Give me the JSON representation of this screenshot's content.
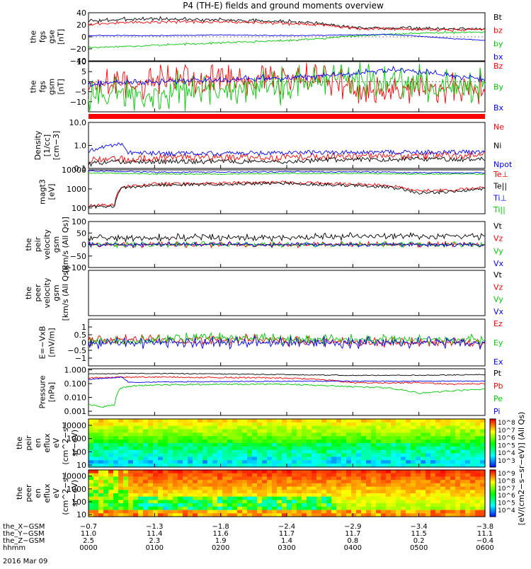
{
  "title": "P4 (TH-E) fields and ground moments overview",
  "date_label": "2016 Mar 09",
  "colors": {
    "black": "#000000",
    "red": "#ff0000",
    "green": "#00cc00",
    "blue": "#0000ff"
  },
  "chart_data": [
    {
      "id": "fgs-gse",
      "type": "line",
      "ylabel_lines": [
        "the",
        "fgs",
        "gse",
        "[nT]"
      ],
      "ylim": [
        -40,
        40
      ],
      "ticks": [
        "40",
        "20",
        "0",
        "−20",
        "−40"
      ],
      "tick_values": [
        40,
        20,
        0,
        -20,
        -40
      ],
      "series": [
        {
          "name": "Bt",
          "color": "#000000",
          "x": [
            0,
            0.5,
            1,
            1.5,
            2,
            2.5,
            3,
            3.5,
            3.9,
            4.2,
            4.5,
            5,
            5.5,
            6
          ],
          "values": [
            26,
            29,
            30,
            29,
            28,
            27,
            25,
            22,
            17,
            14,
            15,
            14,
            13,
            14
          ],
          "noise": 4
        },
        {
          "name": "bz",
          "color": "#ff0000",
          "x": [
            0,
            0.5,
            1,
            1.5,
            2,
            2.5,
            3,
            3.5,
            3.9,
            4.2,
            4.5,
            5,
            5.5,
            6
          ],
          "values": [
            21,
            24,
            25,
            25,
            25,
            24,
            22,
            20,
            16,
            13,
            13,
            12,
            11,
            13
          ],
          "noise": 3
        },
        {
          "name": "by",
          "color": "#00cc00",
          "x": [
            0,
            0.5,
            1,
            1.5,
            2,
            2.5,
            3,
            3.5,
            4,
            4.5,
            5,
            5.5,
            6
          ],
          "values": [
            -18,
            -16,
            -14,
            -12,
            -10,
            -8,
            -6,
            -3,
            1,
            4,
            6,
            7,
            8
          ],
          "noise": 2
        },
        {
          "name": "bx",
          "color": "#0000ff",
          "x": [
            0,
            1,
            2,
            3,
            4,
            4.5,
            5,
            5.5,
            6
          ],
          "values": [
            2,
            2,
            3,
            2,
            3,
            4,
            1,
            -3,
            -6
          ],
          "noise": 1
        }
      ]
    },
    {
      "id": "fgs-gsm",
      "type": "line",
      "ylabel_lines": [
        "the",
        "fgs",
        "gsm",
        "[nT]"
      ],
      "ylim": [
        -15,
        10
      ],
      "ticks": [
        "10",
        "5",
        "0",
        "−5",
        "−10"
      ],
      "tick_values": [
        10,
        5,
        0,
        -5,
        -10
      ],
      "series": [
        {
          "name": "Bz",
          "color": "#ff0000",
          "x": [
            0,
            1,
            2,
            3,
            3.5,
            4,
            4.5,
            5,
            5.5,
            6
          ],
          "values": [
            -2,
            0,
            1,
            2,
            1,
            -4,
            -5,
            -4,
            -3,
            -4
          ],
          "noise": 9
        },
        {
          "name": "By",
          "color": "#00cc00",
          "x": [
            0,
            1,
            2,
            3,
            3.5,
            4,
            4.5,
            5,
            5.5,
            6
          ],
          "values": [
            -6,
            -5,
            -4,
            -2,
            0,
            2,
            0,
            -2,
            -3,
            -2
          ],
          "noise": 11
        },
        {
          "name": "Bx",
          "color": "#0000ff",
          "x": [
            0,
            1,
            2,
            3,
            3.5,
            4,
            4.5,
            5,
            5.5,
            6
          ],
          "values": [
            -1,
            0,
            1,
            2,
            3,
            4,
            6,
            5,
            3,
            1
          ],
          "noise": 2
        }
      ]
    },
    {
      "id": "density",
      "type": "line",
      "log": true,
      "ylabel_lines": [
        "Density",
        "[1/cc]",
        "[cm−3]"
      ],
      "ylim": [
        0.1,
        10
      ],
      "ticks": [
        "10.0",
        "1.0",
        "0.1"
      ],
      "tick_values": [
        10,
        1,
        0.1
      ],
      "series": [
        {
          "name": "Ne",
          "color": "#ff0000",
          "x": [
            0,
            0.3,
            0.6,
            1,
            2,
            3,
            4,
            5,
            6
          ],
          "values": [
            0.2,
            0.3,
            0.25,
            0.3,
            0.3,
            0.3,
            0.35,
            0.35,
            0.4
          ],
          "noise": 0.15
        },
        {
          "name": "Ni",
          "color": "#000000",
          "x": [
            0,
            0.3,
            0.6,
            1,
            2,
            3,
            4,
            5,
            6
          ],
          "values": [
            0.15,
            0.2,
            0.2,
            0.2,
            0.2,
            0.2,
            0.25,
            0.25,
            0.25
          ],
          "noise": 0.1
        },
        {
          "name": "Npot",
          "color": "#0000ff",
          "x": [
            0,
            0.3,
            0.5,
            0.6,
            1,
            2,
            3,
            4,
            5,
            6
          ],
          "values": [
            0.5,
            1.0,
            1.2,
            0.5,
            0.45,
            0.45,
            0.5,
            0.5,
            0.5,
            0.5
          ],
          "noise": 0.1
        }
      ]
    },
    {
      "id": "temperature",
      "type": "line",
      "log": true,
      "ylabel_lines": [
        "magt3",
        "[eV]"
      ],
      "ylim": [
        50,
        10000
      ],
      "ticks": [
        "10000",
        "1000",
        "100"
      ],
      "tick_values": [
        10000,
        1000,
        100
      ],
      "series": [
        {
          "name": "Te⊥",
          "color": "#ff0000",
          "x": [
            0,
            0.2,
            0.4,
            0.5,
            0.7,
            1,
            2,
            3,
            4,
            4.5,
            5,
            5.5,
            6
          ],
          "values": [
            130,
            140,
            150,
            1300,
            1500,
            1800,
            2000,
            2200,
            1800,
            1600,
            800,
            900,
            1200
          ],
          "noise": 0.08
        },
        {
          "name": "Te||",
          "color": "#000000",
          "x": [
            0,
            0.2,
            0.4,
            0.5,
            0.7,
            1,
            2,
            3,
            4,
            4.5,
            5,
            5.5,
            6
          ],
          "values": [
            110,
            120,
            130,
            1100,
            1300,
            1600,
            1800,
            2000,
            1500,
            1300,
            600,
            700,
            1000
          ],
          "noise": 0.08
        },
        {
          "name": "Ti⊥",
          "color": "#0000ff",
          "x": [
            0,
            1,
            2,
            3,
            4,
            5,
            6
          ],
          "values": [
            9000,
            7500,
            7500,
            8000,
            8000,
            7000,
            7000
          ],
          "noise": 0.03
        },
        {
          "name": "Ti||",
          "color": "#00cc00",
          "x": [
            0,
            1,
            2,
            3,
            4,
            5,
            6
          ],
          "values": [
            7000,
            6000,
            6000,
            6500,
            6500,
            6000,
            6000
          ],
          "noise": 0.03
        }
      ]
    },
    {
      "id": "peir-velocity",
      "type": "line",
      "ylabel_lines": [
        "the",
        "peir",
        "velocity",
        "gsm",
        "[km/s (All Qs)]"
      ],
      "ylim": [
        -100,
        100
      ],
      "ticks": [
        "100",
        "50",
        "0",
        "−50",
        "−100"
      ],
      "tick_values": [
        100,
        50,
        0,
        -50,
        -100
      ],
      "series": [
        {
          "name": "Vt",
          "color": "#000000",
          "x": [
            0,
            1,
            2,
            3,
            4,
            5,
            6
          ],
          "values": [
            30,
            30,
            30,
            30,
            35,
            40,
            35
          ],
          "noise": 18
        },
        {
          "name": "Vz",
          "color": "#ff0000",
          "x": [
            0,
            1,
            2,
            3,
            4,
            5,
            6
          ],
          "values": [
            0,
            0,
            0,
            0,
            0,
            0,
            0
          ],
          "noise": 15
        },
        {
          "name": "Vy",
          "color": "#00cc00",
          "x": [
            0,
            1,
            2,
            3,
            4,
            5,
            6
          ],
          "values": [
            0,
            0,
            0,
            0,
            0,
            0,
            0
          ],
          "noise": 15
        },
        {
          "name": "Vx",
          "color": "#0000ff",
          "x": [
            0,
            1,
            2,
            3,
            4,
            5,
            6
          ],
          "values": [
            0,
            0,
            0,
            0,
            0,
            0,
            0
          ],
          "noise": 12
        }
      ]
    },
    {
      "id": "peer-velocity",
      "type": "line",
      "ylabel_lines": [
        "the",
        "peer",
        "velocity",
        "gsm",
        "[km/s (All Qs)]"
      ],
      "ylim": [
        -1,
        1
      ],
      "ticks": [],
      "tick_values": [],
      "series": [
        {
          "name": "Vt",
          "color": "#000000",
          "x": [],
          "values": []
        },
        {
          "name": "Vz",
          "color": "#ff0000",
          "x": [],
          "values": []
        },
        {
          "name": "Vy",
          "color": "#00cc00",
          "x": [],
          "values": []
        },
        {
          "name": "Vx",
          "color": "#0000ff",
          "x": [],
          "values": []
        }
      ]
    },
    {
      "id": "efield",
      "type": "line",
      "ylabel_lines": [
        "E=−VxB",
        "[mV/m]"
      ],
      "ylim": [
        -1.5,
        1.5
      ],
      "ticks": [
        "1",
        "0.5",
        "0",
        "−0.5",
        "−1"
      ],
      "tick_values": [
        1,
        0.5,
        0,
        -0.5,
        -1
      ],
      "series": [
        {
          "name": "Ez",
          "color": "#ff0000",
          "x": [
            0,
            1,
            2,
            3,
            4,
            5,
            6
          ],
          "values": [
            0.1,
            0.2,
            0.2,
            0.1,
            0,
            0,
            0
          ],
          "noise": 0.4
        },
        {
          "name": "Ey",
          "color": "#00cc00",
          "x": [
            0,
            1,
            2,
            3,
            4,
            5,
            6
          ],
          "values": [
            0,
            0.2,
            0.3,
            0.2,
            0.2,
            0.2,
            0.2
          ],
          "noise": 0.4
        },
        {
          "name": "Ex",
          "color": "#0000ff",
          "x": [
            0,
            1,
            2,
            3,
            4,
            5,
            6
          ],
          "values": [
            0,
            0,
            0,
            0,
            0,
            0,
            0
          ],
          "noise": 0.45
        }
      ]
    },
    {
      "id": "pressure",
      "type": "line",
      "log": true,
      "ylabel_lines": [
        "Pressure",
        "[nPa]"
      ],
      "ylim": [
        0.0005,
        1.2
      ],
      "ticks": [
        "1.000",
        "0.100",
        "0.010",
        "0.001"
      ],
      "tick_values": [
        1,
        0.1,
        0.01,
        0.001
      ],
      "series": [
        {
          "name": "Pt",
          "color": "#000000",
          "x": [
            0,
            0.5,
            1,
            2,
            3,
            3.5,
            4,
            5,
            6
          ],
          "values": [
            0.5,
            0.55,
            0.55,
            0.5,
            0.45,
            0.42,
            0.4,
            0.4,
            0.45
          ],
          "noise": 0.03
        },
        {
          "name": "Pb",
          "color": "#ff0000",
          "x": [
            0,
            0.5,
            1,
            2,
            3,
            3.5,
            4,
            4.5,
            5,
            5.5,
            6
          ],
          "values": [
            0.25,
            0.3,
            0.3,
            0.28,
            0.25,
            0.2,
            0.12,
            0.11,
            0.12,
            0.09,
            0.1
          ],
          "noise": 0.05
        },
        {
          "name": "Pe",
          "color": "#00cc00",
          "x": [
            0,
            0.2,
            0.4,
            0.5,
            0.7,
            1,
            2,
            3,
            4,
            4.5,
            5,
            5.5,
            6
          ],
          "values": [
            0.003,
            0.002,
            0.003,
            0.05,
            0.07,
            0.08,
            0.09,
            0.09,
            0.06,
            0.05,
            0.02,
            0.03,
            0.04
          ],
          "noise": 0.05
        },
        {
          "name": "Pi",
          "color": "#0000ff",
          "x": [
            0,
            0.3,
            0.5,
            0.6,
            1,
            2,
            3,
            4,
            5,
            6
          ],
          "values": [
            0.2,
            0.25,
            0.3,
            0.12,
            0.13,
            0.14,
            0.15,
            0.15,
            0.15,
            0.15
          ],
          "noise": 0.03
        }
      ]
    },
    {
      "id": "peir-spectrogram",
      "type": "heatmap",
      "ylabel_lines": [
        "the",
        "peir",
        "en",
        "eflux",
        "eV",
        "(cm^2−s−",
        "sr−eV)"
      ],
      "ylim": [
        7,
        30000
      ],
      "ticks": [
        "10000",
        "1000",
        "100",
        "10"
      ],
      "tick_values": [
        10000,
        1000,
        100,
        10
      ]
    },
    {
      "id": "peer-spectrogram",
      "type": "heatmap",
      "ylabel_lines": [
        "the",
        "peer",
        "en",
        "eflux",
        "eV",
        "(cm^2−s−",
        "sr−eV)"
      ],
      "ylim": [
        7,
        30000
      ],
      "ticks": [
        "10000",
        "1000",
        "100",
        "10"
      ],
      "tick_values": [
        10000,
        1000,
        100,
        10
      ]
    }
  ],
  "colorbar": {
    "label": "[eV/(cm2−s−sr−eV)] (All Qs)",
    "upper_ticks": [
      "10^8",
      "10^7",
      "10^6",
      "10^5",
      "10^4",
      "10^3"
    ],
    "lower_ticks": [
      "10^9",
      "10^8",
      "10^7",
      "10^6",
      "10^5",
      "10^4"
    ]
  },
  "xaxis": {
    "rows": [
      {
        "label": "the_X−GSM",
        "values": [
          "−0.7",
          "−1.3",
          "−1.8",
          "−2.4",
          "−2.9",
          "−3.4",
          "−3.8"
        ]
      },
      {
        "label": "the_Y−GSM",
        "values": [
          "11.0",
          "11.4",
          "11.6",
          "11.7",
          "11.7",
          "11.5",
          "11.1"
        ]
      },
      {
        "label": "the_Z−GSM",
        "values": [
          "2.5",
          "2.3",
          "1.9",
          "1.4",
          "0.8",
          "0.2",
          "−0.4"
        ]
      },
      {
        "label": "hhmm",
        "values": [
          "0000",
          "0100",
          "0200",
          "0300",
          "0400",
          "0500",
          "0600"
        ]
      }
    ]
  }
}
